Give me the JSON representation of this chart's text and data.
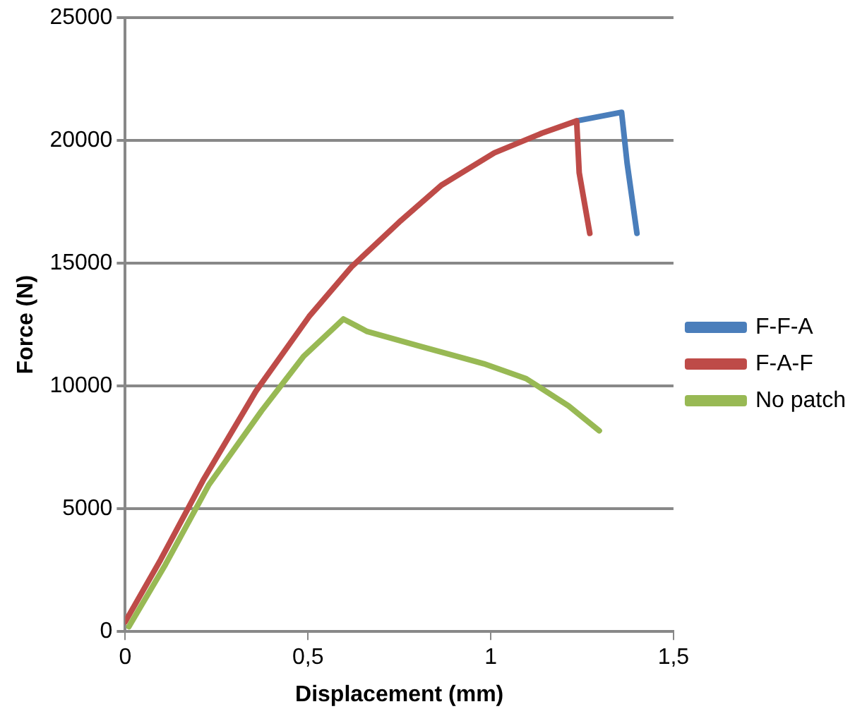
{
  "chart_data": {
    "type": "line",
    "xlabel": "Displacement (mm)",
    "ylabel": "Force (N)",
    "xlim": [
      0,
      1.5
    ],
    "xticks": [
      0,
      {
        "value": 0.5,
        "label": "0,5"
      },
      1,
      {
        "value": 1.5,
        "label": "1,5"
      }
    ],
    "ylim": [
      0,
      25000
    ],
    "yticks": [
      0,
      5000,
      10000,
      15000,
      20000,
      25000
    ],
    "grid": "y",
    "legend": "right",
    "marker": "none",
    "line_style": "solid",
    "series": [
      {
        "name": "F-F-A",
        "color": "#4a7ebb",
        "x": [
          1.235,
          1.358,
          1.373,
          1.4
        ],
        "values": [
          20800,
          21150,
          19090,
          16220
        ]
      },
      {
        "name": "F-A-F",
        "color": "#be4b48",
        "x": [
          0,
          0.097,
          0.213,
          0.358,
          0.503,
          0.619,
          0.749,
          0.865,
          1.01,
          1.14,
          1.235,
          1.242,
          1.271
        ],
        "values": [
          400,
          2930,
          6160,
          9800,
          12830,
          14850,
          16670,
          18180,
          19500,
          20300,
          20800,
          18690,
          16220
        ]
      },
      {
        "name": "No patch",
        "color": "#98b954",
        "x": [
          0.01,
          0.11,
          0.228,
          0.373,
          0.488,
          0.597,
          0.662,
          0.807,
          0.981,
          1.097,
          1.213,
          1.297
        ],
        "values": [
          200,
          2730,
          5960,
          8990,
          11210,
          12730,
          12220,
          11620,
          10910,
          10300,
          9190,
          8180
        ]
      }
    ]
  }
}
